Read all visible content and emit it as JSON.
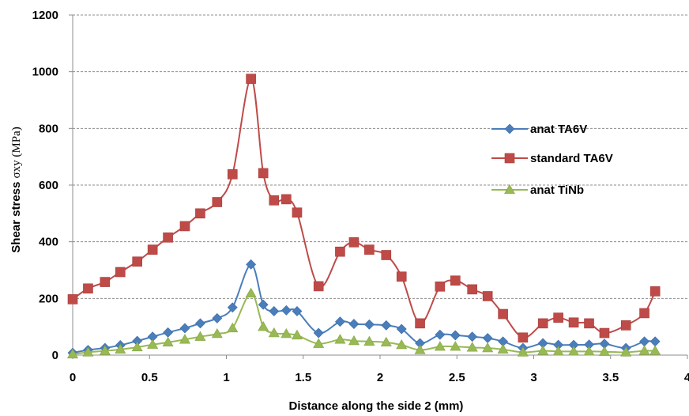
{
  "chart_data": {
    "type": "line",
    "xlabel": "Distance along the side 2 (mm)",
    "ylabel_parts": [
      "Shear stress ",
      "σxy (MPa)"
    ],
    "xlim": [
      0,
      4
    ],
    "ylim": [
      0,
      1200
    ],
    "x_ticks": [
      0,
      0.5,
      1,
      1.5,
      2,
      2.5,
      3,
      3.5,
      4
    ],
    "x_tick_labels": [
      "0",
      "0.5",
      "1",
      "1.5",
      "2",
      "2.5",
      "3",
      "3.5",
      "4"
    ],
    "y_ticks": [
      0,
      200,
      400,
      600,
      800,
      1000,
      1200
    ],
    "y_tick_labels": [
      "0",
      "200",
      "400",
      "600",
      "800",
      "1000",
      "1200"
    ],
    "grid": "horizontal dashed",
    "legend_position": "right",
    "series": [
      {
        "name": "anat TA6V",
        "color": "#4a7ebb",
        "marker": "diamond",
        "points": [
          [
            0,
            8
          ],
          [
            0.1,
            18
          ],
          [
            0.21,
            25
          ],
          [
            0.31,
            35
          ],
          [
            0.42,
            50
          ],
          [
            0.52,
            65
          ],
          [
            0.62,
            80
          ],
          [
            0.73,
            95
          ],
          [
            0.83,
            112
          ],
          [
            0.94,
            130
          ],
          [
            1.04,
            168
          ],
          [
            1.16,
            320
          ],
          [
            1.24,
            178
          ],
          [
            1.31,
            155
          ],
          [
            1.39,
            158
          ],
          [
            1.46,
            155
          ],
          [
            1.6,
            78
          ],
          [
            1.74,
            118
          ],
          [
            1.83,
            110
          ],
          [
            1.93,
            108
          ],
          [
            2.04,
            105
          ],
          [
            2.14,
            92
          ],
          [
            2.26,
            42
          ],
          [
            2.39,
            72
          ],
          [
            2.49,
            70
          ],
          [
            2.6,
            65
          ],
          [
            2.7,
            60
          ],
          [
            2.8,
            48
          ],
          [
            2.93,
            25
          ],
          [
            3.06,
            42
          ],
          [
            3.16,
            36
          ],
          [
            3.26,
            36
          ],
          [
            3.36,
            37
          ],
          [
            3.46,
            40
          ],
          [
            3.6,
            25
          ],
          [
            3.72,
            48
          ],
          [
            3.79,
            48
          ]
        ]
      },
      {
        "name": "standard TA6V",
        "color": "#be4b48",
        "marker": "square",
        "points": [
          [
            0,
            197
          ],
          [
            0.1,
            235
          ],
          [
            0.21,
            258
          ],
          [
            0.31,
            293
          ],
          [
            0.42,
            330
          ],
          [
            0.52,
            372
          ],
          [
            0.62,
            415
          ],
          [
            0.73,
            455
          ],
          [
            0.83,
            500
          ],
          [
            0.94,
            540
          ],
          [
            1.04,
            638
          ],
          [
            1.16,
            975
          ],
          [
            1.24,
            642
          ],
          [
            1.31,
            546
          ],
          [
            1.39,
            550
          ],
          [
            1.46,
            503
          ],
          [
            1.6,
            243
          ],
          [
            1.74,
            365
          ],
          [
            1.83,
            398
          ],
          [
            1.93,
            372
          ],
          [
            2.04,
            353
          ],
          [
            2.14,
            277
          ],
          [
            2.26,
            112
          ],
          [
            2.39,
            242
          ],
          [
            2.49,
            263
          ],
          [
            2.6,
            232
          ],
          [
            2.7,
            208
          ],
          [
            2.8,
            145
          ],
          [
            2.93,
            62
          ],
          [
            3.06,
            112
          ],
          [
            3.16,
            132
          ],
          [
            3.26,
            115
          ],
          [
            3.36,
            112
          ],
          [
            3.46,
            78
          ],
          [
            3.6,
            105
          ],
          [
            3.72,
            148
          ],
          [
            3.79,
            225
          ]
        ]
      },
      {
        "name": "anat TiNb",
        "color": "#98b954",
        "marker": "triangle",
        "points": [
          [
            0,
            3
          ],
          [
            0.1,
            10
          ],
          [
            0.21,
            15
          ],
          [
            0.31,
            20
          ],
          [
            0.42,
            28
          ],
          [
            0.52,
            37
          ],
          [
            0.62,
            45
          ],
          [
            0.73,
            55
          ],
          [
            0.83,
            65
          ],
          [
            0.94,
            75
          ],
          [
            1.04,
            95
          ],
          [
            1.16,
            218
          ],
          [
            1.24,
            100
          ],
          [
            1.31,
            78
          ],
          [
            1.39,
            75
          ],
          [
            1.46,
            70
          ],
          [
            1.6,
            40
          ],
          [
            1.74,
            55
          ],
          [
            1.83,
            50
          ],
          [
            1.93,
            48
          ],
          [
            2.04,
            45
          ],
          [
            2.14,
            36
          ],
          [
            2.26,
            18
          ],
          [
            2.39,
            30
          ],
          [
            2.49,
            30
          ],
          [
            2.6,
            27
          ],
          [
            2.7,
            25
          ],
          [
            2.8,
            20
          ],
          [
            2.93,
            10
          ],
          [
            3.06,
            15
          ],
          [
            3.16,
            13
          ],
          [
            3.26,
            13
          ],
          [
            3.36,
            13
          ],
          [
            3.46,
            12
          ],
          [
            3.6,
            10
          ],
          [
            3.72,
            15
          ],
          [
            3.79,
            15
          ]
        ]
      }
    ]
  }
}
